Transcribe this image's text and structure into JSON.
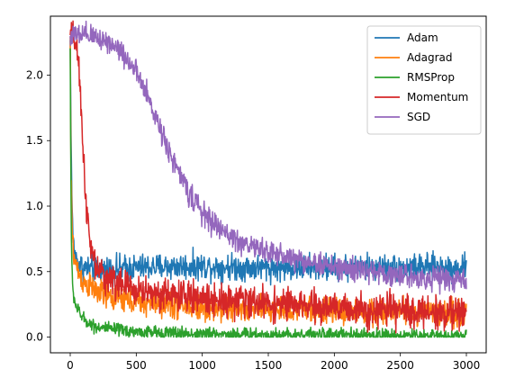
{
  "chart_data": {
    "type": "line",
    "title": "",
    "xlabel": "",
    "ylabel": "",
    "xlim": [
      -150,
      3150
    ],
    "ylim": [
      -0.12,
      2.45
    ],
    "xticks": [
      0,
      500,
      1000,
      1500,
      2000,
      2500,
      3000
    ],
    "xtick_labels": [
      "0",
      "500",
      "1000",
      "1500",
      "2000",
      "2500",
      "3000"
    ],
    "yticks": [
      0.0,
      0.5,
      1.0,
      1.5,
      2.0
    ],
    "ytick_labels": [
      "0.0",
      "0.5",
      "1.0",
      "1.5",
      "2.0"
    ],
    "grid": false,
    "legend_position": "upper right",
    "series": [
      {
        "name": "Adam",
        "color": "#1f77b4",
        "x": [
          0,
          10,
          20,
          40,
          70,
          100,
          150,
          200,
          300,
          500,
          800,
          1000,
          1500,
          2000,
          2500,
          3000
        ],
        "y": [
          2.25,
          1.2,
          0.75,
          0.6,
          0.55,
          0.53,
          0.52,
          0.52,
          0.52,
          0.53,
          0.54,
          0.54,
          0.53,
          0.53,
          0.53,
          0.53
        ],
        "noise": 0.05
      },
      {
        "name": "Adagrad",
        "color": "#ff7f0e",
        "x": [
          0,
          5,
          15,
          30,
          60,
          100,
          200,
          300,
          500,
          800,
          1000,
          1500,
          2000,
          2500,
          3000
        ],
        "y": [
          2.28,
          1.3,
          0.8,
          0.6,
          0.5,
          0.42,
          0.35,
          0.3,
          0.27,
          0.24,
          0.22,
          0.21,
          0.2,
          0.19,
          0.18
        ],
        "noise": 0.05
      },
      {
        "name": "RMSProp",
        "color": "#2ca02c",
        "x": [
          0,
          5,
          10,
          20,
          40,
          60,
          100,
          150,
          200,
          300,
          500,
          800,
          1000,
          1500,
          2000,
          2500,
          3000
        ],
        "y": [
          2.2,
          1.2,
          0.6,
          0.35,
          0.25,
          0.2,
          0.14,
          0.1,
          0.08,
          0.06,
          0.04,
          0.03,
          0.025,
          0.02,
          0.015,
          0.012,
          0.01
        ],
        "noise": 0.025
      },
      {
        "name": "Momentum",
        "color": "#d62728",
        "x": [
          0,
          30,
          50,
          70,
          90,
          110,
          130,
          150,
          175,
          200,
          250,
          300,
          400,
          500,
          700,
          1000,
          1500,
          2000,
          2500,
          3000
        ],
        "y": [
          2.3,
          2.28,
          2.2,
          1.95,
          1.6,
          1.2,
          0.9,
          0.7,
          0.6,
          0.52,
          0.47,
          0.44,
          0.4,
          0.36,
          0.33,
          0.3,
          0.26,
          0.22,
          0.2,
          0.18
        ],
        "noise": 0.06
      },
      {
        "name": "SGD",
        "color": "#9467bd",
        "x": [
          0,
          100,
          200,
          300,
          400,
          500,
          600,
          700,
          800,
          900,
          1000,
          1100,
          1200,
          1300,
          1500,
          1700,
          2000,
          2500,
          3000
        ],
        "y": [
          2.3,
          2.3,
          2.29,
          2.25,
          2.17,
          2.02,
          1.8,
          1.55,
          1.3,
          1.1,
          0.95,
          0.85,
          0.78,
          0.72,
          0.65,
          0.6,
          0.53,
          0.47,
          0.43
        ],
        "noise": 0.045
      }
    ]
  }
}
